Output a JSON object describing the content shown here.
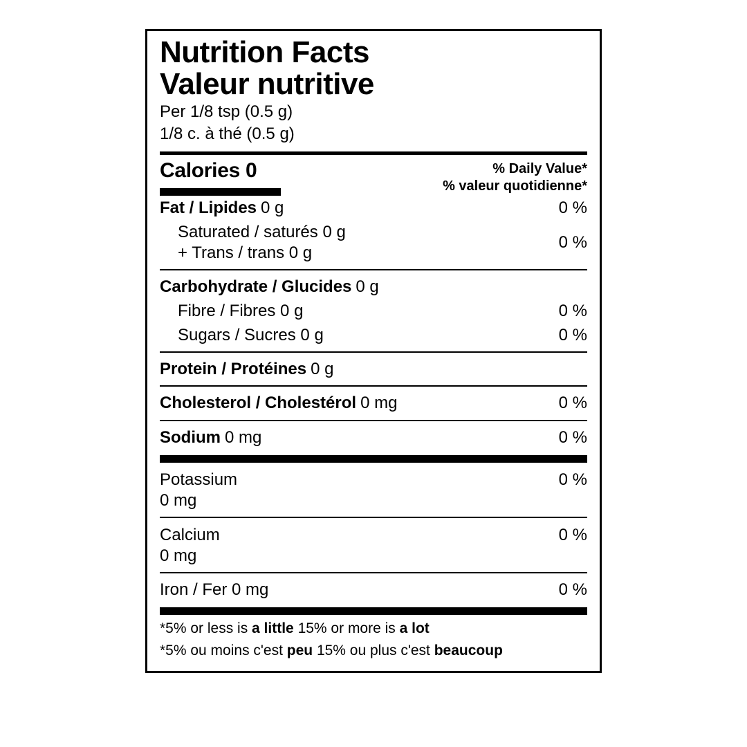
{
  "colors": {
    "fg": "#000000",
    "bg": "#ffffff"
  },
  "header": {
    "title_en": "Nutrition Facts",
    "title_fr": "Valeur nutritive",
    "serving_en": "Per 1/8 tsp (0.5 g)",
    "serving_fr": "1/8 c. à thé (0.5 g)"
  },
  "calories": {
    "label": "Calories",
    "value": "0",
    "dv_line1": "% Daily Value*",
    "dv_line2": "% valeur quotidienne*"
  },
  "nutrients": {
    "fat": {
      "name": "Fat / Lipides",
      "amount": "0 g",
      "pct": "0 %"
    },
    "sat": {
      "name": "Saturated / saturés",
      "amount": "0 g"
    },
    "trans": {
      "name": "+ Trans / trans",
      "amount": "0 g",
      "pct_combined": "0 %"
    },
    "carb": {
      "name": "Carbohydrate / Glucides",
      "amount": "0 g"
    },
    "fibre": {
      "name": "Fibre / Fibres",
      "amount": "0 g",
      "pct": "0 %"
    },
    "sugars": {
      "name": "Sugars / Sucres",
      "amount": "0 g",
      "pct": "0 %"
    },
    "protein": {
      "name": "Protein / Protéines",
      "amount": "0 g"
    },
    "chol": {
      "name": "Cholesterol / Cholestérol",
      "amount": "0 mg",
      "pct": "0 %"
    },
    "sodium": {
      "name": "Sodium",
      "amount": "0 mg",
      "pct": "0 %"
    }
  },
  "minerals": {
    "potassium": {
      "name": "Potassium",
      "amount": "0 mg",
      "pct": "0 %"
    },
    "calcium": {
      "name": "Calcium",
      "amount": "0 mg",
      "pct": "0 %"
    },
    "iron": {
      "name": "Iron / Fer",
      "amount": "0 mg",
      "pct": "0 %"
    }
  },
  "footnote": {
    "en_a": "*5% or less is ",
    "en_b1": "a little",
    "en_c": " 15% or more is ",
    "en_b2": "a lot",
    "fr_a": "*5% ou moins c'est ",
    "fr_b1": "peu",
    "fr_c": " 15% ou plus c'est ",
    "fr_b2": "beaucoup"
  }
}
